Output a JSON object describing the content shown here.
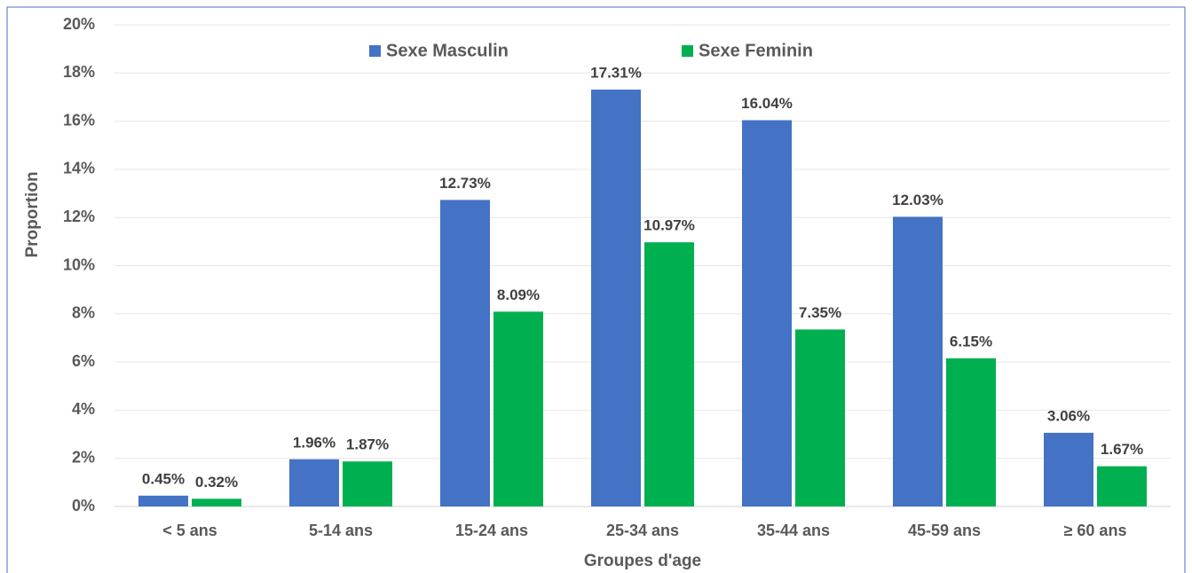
{
  "chart_data": {
    "type": "bar",
    "x_label": "Groupes d'age",
    "y_label": "Proportion",
    "categories": [
      "< 5 ans",
      "5-14 ans",
      "15-24 ans",
      "25-34 ans",
      "35-44 ans",
      "45-59 ans",
      "≥ 60 ans"
    ],
    "series": [
      {
        "name": "Sexe Masculin",
        "color": "#4472c4",
        "values": [
          0.45,
          1.96,
          12.73,
          17.31,
          16.04,
          12.03,
          3.06
        ],
        "value_labels": [
          "0.45%",
          "1.96%",
          "12.73%",
          "17.31%",
          "16.04%",
          "12.03%",
          "3.06%"
        ]
      },
      {
        "name": "Sexe Feminin",
        "color": "#00b050",
        "values": [
          0.32,
          1.87,
          8.09,
          10.97,
          7.35,
          6.15,
          1.67
        ],
        "value_labels": [
          "0.32%",
          "1.87%",
          "8.09%",
          "10.97%",
          "7.35%",
          "6.15%",
          "1.67%"
        ]
      }
    ],
    "ylim": [
      0,
      20
    ],
    "yticks": [
      {
        "value": 0,
        "label": "0%"
      },
      {
        "value": 2,
        "label": "2%"
      },
      {
        "value": 4,
        "label": "4%"
      },
      {
        "value": 6,
        "label": "6%"
      },
      {
        "value": 8,
        "label": "8%"
      },
      {
        "value": 10,
        "label": "10%"
      },
      {
        "value": 12,
        "label": "12%"
      },
      {
        "value": 14,
        "label": "14%"
      },
      {
        "value": 16,
        "label": "16%"
      },
      {
        "value": 18,
        "label": "18%"
      },
      {
        "value": 20,
        "label": "20%"
      }
    ],
    "grid": true,
    "legend": "top"
  }
}
